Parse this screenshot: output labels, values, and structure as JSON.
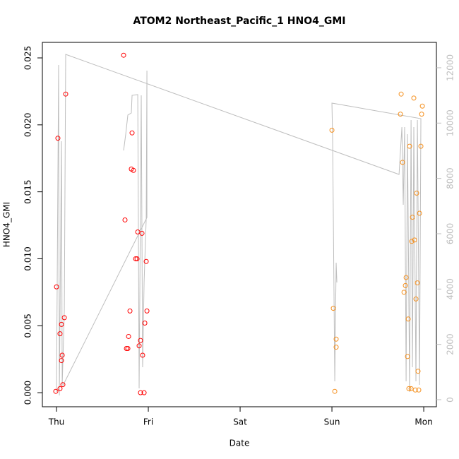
{
  "chart_data": {
    "type": "scatter",
    "title": "ATOM2 Northeast_Pacific_1 HNO4_GMI",
    "x_label": "Date",
    "y_label": "HNO4_GMI",
    "xlim": [
      -0.154,
      4.138
    ],
    "ylim": [
      -0.00105,
      0.02616
    ],
    "y2lim": [
      -255,
      12918
    ],
    "xticks": [
      {
        "value": 0,
        "label": "Thu"
      },
      {
        "value": 1,
        "label": "Fri"
      },
      {
        "value": 2,
        "label": "Sat"
      },
      {
        "value": 3,
        "label": "Sun"
      },
      {
        "value": 4,
        "label": "Mon"
      }
    ],
    "yticks": [
      {
        "value": 0,
        "label": "0.000"
      },
      {
        "value": 0.005,
        "label": "0.005"
      },
      {
        "value": 0.01,
        "label": "0.010"
      },
      {
        "value": 0.015,
        "label": "0.015"
      },
      {
        "value": 0.02,
        "label": "0.020"
      },
      {
        "value": 0.025,
        "label": "0.025"
      }
    ],
    "y2ticks": [
      0,
      2000,
      4000,
      6000,
      8000,
      10000,
      12000
    ],
    "y2_color": "#bebebe",
    "series": [
      {
        "color": "#bebebe",
        "axis": "y2",
        "line": true,
        "x": [
          0.0,
          0.023,
          0.031,
          0.054,
          0.062,
          0.085,
          0.1,
          3.731,
          3.762,
          3.777,
          3.792,
          3.808,
          3.823,
          3.846,
          3.862,
          3.877,
          3.892,
          3.915,
          3.931,
          3.954,
          3.969,
          3.0,
          3.008,
          3.031,
          3.046,
          3.054,
          null,
          0.731,
          0.754,
          0.777,
          0.815,
          0.823,
          0.885,
          0.9,
          0.923,
          0.938,
          0.954,
          0.977,
          0.985,
          0.985,
          0.062
        ],
        "values": [
          281,
          12101,
          153,
          9344,
          536,
          3217,
          12484,
          8144,
          9855,
          7046,
          9855,
          664,
          9599,
          281,
          10110,
          1174,
          9855,
          664,
          10110,
          536,
          10161,
          10723,
          9344,
          664,
          4953,
          4238,
          null,
          9012,
          9599,
          10289,
          10365,
          11003,
          11029,
          408,
          11003,
          1174,
          4238,
          6536,
          11897,
          6587,
          459
        ]
      },
      {
        "color": "#ff0000",
        "x": [
          -0.008,
          0.0,
          0.015,
          0.038,
          0.038,
          0.054,
          0.054,
          0.062,
          0.069,
          0.085,
          0.1,
          0.731,
          0.746,
          0.762,
          0.777,
          0.785,
          0.8,
          0.815,
          0.823,
          0.838,
          0.862,
          0.877,
          0.885,
          0.9,
          0.915,
          0.915,
          0.931,
          0.938,
          0.954,
          0.962,
          0.977,
          0.985
        ],
        "values": [
          0.0001,
          0.0079,
          0.019,
          0.0003,
          0.0044,
          0.0024,
          0.0051,
          0.0028,
          0.0006,
          0.0056,
          0.0223,
          0.0252,
          0.0129,
          0.0033,
          0.0033,
          0.0042,
          0.0061,
          0.0167,
          0.0194,
          0.0166,
          0.01,
          0.01,
          0.012,
          0.0035,
          0.0039,
          0.0,
          0.0119,
          0.0028,
          0.0,
          0.0052,
          0.0098,
          0.0061
        ]
      },
      {
        "color": "#f5901e",
        "x": [
          3.0,
          3.015,
          3.031,
          3.046,
          3.046,
          3.754,
          3.746,
          3.769,
          3.785,
          3.8,
          3.808,
          3.823,
          3.831,
          3.838,
          3.846,
          3.862,
          3.869,
          3.877,
          3.892,
          3.9,
          3.908,
          3.915,
          3.923,
          3.931,
          3.938,
          3.946,
          3.954,
          3.969,
          3.977,
          3.985
        ],
        "values": [
          0.0196,
          0.0063,
          0.0001,
          0.0034,
          0.004,
          0.0223,
          0.0208,
          0.0172,
          0.0075,
          0.008,
          0.0086,
          0.0027,
          0.0055,
          0.0003,
          0.0184,
          0.0003,
          0.0113,
          0.0131,
          0.022,
          0.0114,
          0.0002,
          0.007,
          0.0149,
          0.0082,
          0.0016,
          0.0002,
          0.0134,
          0.0184,
          0.0208,
          0.0214
        ]
      }
    ]
  }
}
